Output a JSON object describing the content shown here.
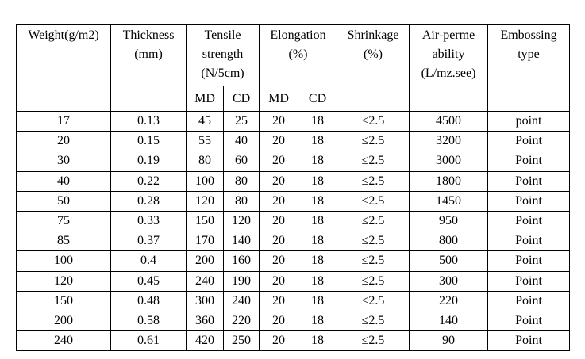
{
  "table": {
    "headers": {
      "weight": "Weight(g/m2)",
      "thickness": "Thickness\n(mm)",
      "tensile": "Tensile\nstrength\n(N/5cm)",
      "elongation": "Elongation\n(%)",
      "shrinkage": "Shrinkage\n(%)",
      "air": "Air-perme\nability\n(L/mz.see)",
      "embossing": "Embossing\ntype",
      "md_1": "MD",
      "cd_1": "CD",
      "md_2": "MD",
      "cd_2": "CD"
    },
    "rows": [
      [
        "17",
        "0.13",
        "45",
        "25",
        "20",
        "18",
        "≤2.5",
        "4500",
        "point"
      ],
      [
        "20",
        "0.15",
        "55",
        "40",
        "20",
        "18",
        "≤2.5",
        "3200",
        "Point"
      ],
      [
        "30",
        "0.19",
        "80",
        "60",
        "20",
        "18",
        "≤2.5",
        "3000",
        "Point"
      ],
      [
        "40",
        "0.22",
        "100",
        "80",
        "20",
        "18",
        "≤2.5",
        "1800",
        "Point"
      ],
      [
        "50",
        "0.28",
        "120",
        "80",
        "20",
        "18",
        "≤2.5",
        "1450",
        "Point"
      ],
      [
        "75",
        "0.33",
        "150",
        "120",
        "20",
        "18",
        "≤2.5",
        "950",
        "Point"
      ],
      [
        "85",
        "0.37",
        "170",
        "140",
        "20",
        "18",
        "≤2.5",
        "800",
        "Point"
      ],
      [
        "100",
        "0.4",
        "200",
        "160",
        "20",
        "18",
        "≤2.5",
        "500",
        "Point"
      ],
      [
        "120",
        "0.45",
        "240",
        "190",
        "20",
        "18",
        "≤2.5",
        "300",
        "Point"
      ],
      [
        "150",
        "0.48",
        "300",
        "240",
        "20",
        "18",
        "≤2.5",
        "220",
        "Point"
      ],
      [
        "200",
        "0.58",
        "360",
        "220",
        "20",
        "18",
        "≤2.5",
        "140",
        "Point"
      ],
      [
        "240",
        "0.61",
        "420",
        "250",
        "20",
        "18",
        "≤2.5",
        "90",
        "Point"
      ]
    ]
  }
}
